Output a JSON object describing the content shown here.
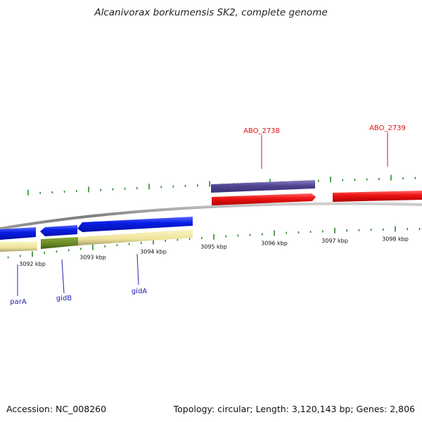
{
  "title": "Alcanivorax borkumensis SK2, complete genome",
  "footer": {
    "accession": "Accession: NC_008260",
    "summary": "Topology: circular; Length: 3,120,143 bp; Genes: 2,806"
  },
  "colors": {
    "backbone": "#8a8a8a",
    "tick": "#2a8a2a",
    "forward_gene": "#e8151a",
    "forward_gene_dark": "#5a4f9a",
    "reverse_gene": "#0a1fe0",
    "cds_pale": "#efe6a0",
    "cds_green": "#6a8a26",
    "label_forward": "#e01010",
    "label_reverse": "#2020b0"
  },
  "ticks": [
    {
      "label": "3092 kbp"
    },
    {
      "label": "3093 kbp"
    },
    {
      "label": "3094 kbp"
    },
    {
      "label": "3095 kbp"
    },
    {
      "label": "3096 kbp"
    },
    {
      "label": "3097 kbp"
    },
    {
      "label": "3098 kbp"
    }
  ],
  "genes_forward": [
    {
      "name": "ABO_2738"
    },
    {
      "name": "ABO_2739"
    }
  ],
  "genes_reverse": [
    {
      "name": "parA"
    },
    {
      "name": "gidB"
    },
    {
      "name": "gidA"
    }
  ]
}
